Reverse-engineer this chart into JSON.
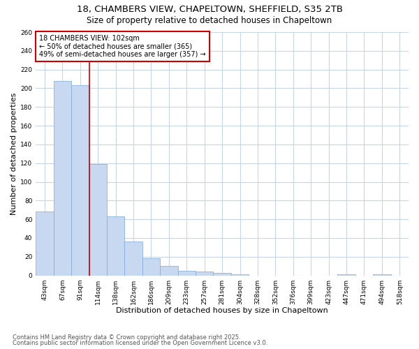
{
  "title_line1": "18, CHAMBERS VIEW, CHAPELTOWN, SHEFFIELD, S35 2TB",
  "title_line2": "Size of property relative to detached houses in Chapeltown",
  "xlabel": "Distribution of detached houses by size in Chapeltown",
  "ylabel": "Number of detached properties",
  "bar_color": "#c8d8f0",
  "bar_edge_color": "#7aa8d8",
  "background_color": "#ffffff",
  "grid_color": "#c8d4e8",
  "categories": [
    "43sqm",
    "67sqm",
    "91sqm",
    "114sqm",
    "138sqm",
    "162sqm",
    "186sqm",
    "209sqm",
    "233sqm",
    "257sqm",
    "281sqm",
    "304sqm",
    "328sqm",
    "352sqm",
    "376sqm",
    "399sqm",
    "423sqm",
    "447sqm",
    "471sqm",
    "494sqm",
    "518sqm"
  ],
  "values": [
    68,
    208,
    203,
    119,
    63,
    36,
    18,
    10,
    5,
    4,
    3,
    1,
    0,
    0,
    0,
    0,
    0,
    1,
    0,
    1,
    0
  ],
  "vline_x": 2.5,
  "vline_color": "#cc0000",
  "annotation_title": "18 CHAMBERS VIEW: 102sqm",
  "annotation_line1": "← 50% of detached houses are smaller (365)",
  "annotation_line2": "49% of semi-detached houses are larger (357) →",
  "annotation_box_color": "#cc0000",
  "ylim": [
    0,
    260
  ],
  "yticks": [
    0,
    20,
    40,
    60,
    80,
    100,
    120,
    140,
    160,
    180,
    200,
    220,
    240,
    260
  ],
  "footnote_line1": "Contains HM Land Registry data © Crown copyright and database right 2025.",
  "footnote_line2": "Contains public sector information licensed under the Open Government Licence v3.0.",
  "title_fontsize": 9.5,
  "subtitle_fontsize": 8.5,
  "axis_label_fontsize": 8,
  "tick_fontsize": 6.5,
  "annotation_fontsize": 7,
  "footnote_fontsize": 6
}
